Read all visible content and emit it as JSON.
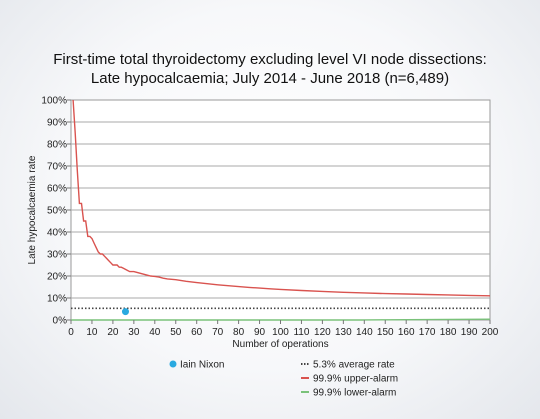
{
  "chart_data": {
    "type": "line",
    "title_lines": [
      "First-time total thyroidectomy excluding level VI node dissections:",
      "Late hypocalcaemia; July 2014 - June 2018 (n=6,489)"
    ],
    "xlabel": "Number of operations",
    "ylabel": "Late hypocalcaemia rate",
    "xlim": [
      0,
      200
    ],
    "ylim": [
      0,
      100
    ],
    "x_ticks": [
      0,
      10,
      20,
      30,
      40,
      50,
      60,
      70,
      80,
      90,
      100,
      110,
      120,
      130,
      140,
      150,
      160,
      170,
      180,
      190,
      200
    ],
    "y_ticks": [
      0,
      10,
      20,
      30,
      40,
      50,
      60,
      70,
      80,
      90,
      100
    ],
    "y_tick_suffix": "%",
    "grid": "horizontal",
    "legend_position": "bottom",
    "series": [
      {
        "name": "5.3% average rate",
        "style": "dotted",
        "color": "#444444",
        "x": [
          0,
          200
        ],
        "y": [
          5.3,
          5.3
        ]
      },
      {
        "name": "99.9% upper-alarm",
        "style": "line",
        "color": "#d9534f",
        "x": [
          1,
          2,
          3,
          4,
          5,
          6,
          7,
          8,
          9,
          10,
          11,
          12,
          13,
          14,
          15,
          16,
          17,
          18,
          19,
          20,
          21,
          22,
          23,
          24,
          25,
          26,
          27,
          28,
          29,
          30,
          32,
          34,
          36,
          38,
          40,
          42,
          44,
          46,
          48,
          50,
          55,
          60,
          65,
          70,
          75,
          80,
          85,
          90,
          95,
          100,
          110,
          120,
          130,
          140,
          150,
          160,
          170,
          180,
          190,
          200
        ],
        "y": [
          100,
          85,
          68,
          53,
          53,
          45,
          45,
          38,
          38,
          37,
          35,
          33,
          31,
          30,
          30,
          29,
          28,
          27,
          26,
          25,
          25,
          25,
          24,
          24,
          23.5,
          23,
          22.5,
          22,
          22,
          22,
          21.5,
          21,
          20.5,
          20,
          19.8,
          19.5,
          19,
          18.7,
          18.5,
          18.3,
          17.6,
          17,
          16.5,
          16,
          15.6,
          15.2,
          14.8,
          14.5,
          14.2,
          13.9,
          13.4,
          13,
          12.6,
          12.3,
          12,
          11.8,
          11.6,
          11.4,
          11.2,
          11
        ]
      },
      {
        "name": "99.9% lower-alarm",
        "style": "line",
        "color": "#7ac27a",
        "x": [
          0,
          139,
          140,
          150,
          160,
          170,
          180,
          190,
          200
        ],
        "y": [
          0,
          0,
          0.05,
          0.1,
          0.15,
          0.2,
          0.25,
          0.3,
          0.35
        ]
      }
    ],
    "points": [
      {
        "name": "Iain Nixon",
        "x": 26,
        "y": 3.8,
        "color": "#29a9e0"
      }
    ]
  }
}
